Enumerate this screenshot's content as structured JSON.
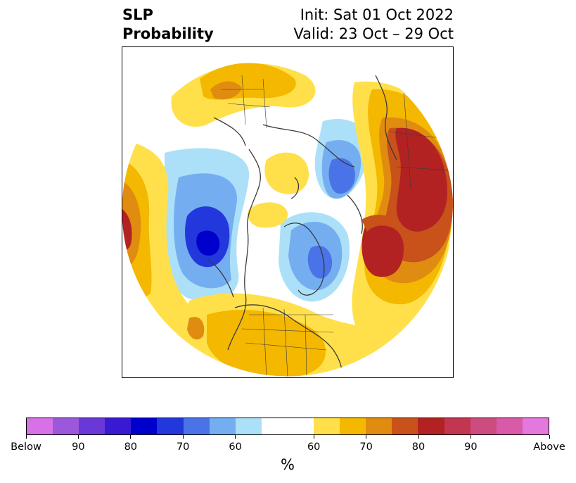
{
  "title": {
    "left": "SLP\nProbability",
    "right_line1": "Init: Sat 01 Oct 2022",
    "right_line2": "Valid: 23 Oct – 29 Oct"
  },
  "colorbar": {
    "colors": [
      "#d671e6",
      "#9b58dc",
      "#6a38d6",
      "#3a19d2",
      "#0000cc",
      "#2238dc",
      "#4a73e8",
      "#74aef0",
      "#ace0f8",
      "#ffffff",
      "#ffffff",
      "#ffe04a",
      "#f4b800",
      "#e08c10",
      "#c8521a",
      "#b22222",
      "#c23650",
      "#cc4c80",
      "#d95aa8",
      "#e479dd"
    ],
    "tick_labels": [
      "Below",
      "90",
      "80",
      "70",
      "60",
      "60",
      "70",
      "80",
      "90",
      "Above"
    ],
    "unit_label": "%"
  },
  "colors": {
    "land_border": "#3a3a3a",
    "blue_light": "#ace0f8",
    "blue_mid": "#74aef0",
    "blue_dark": "#2238dc",
    "yellow": "#ffe04a",
    "gold": "#f4b800",
    "orange": "#e08c10",
    "red": "#b22222"
  }
}
